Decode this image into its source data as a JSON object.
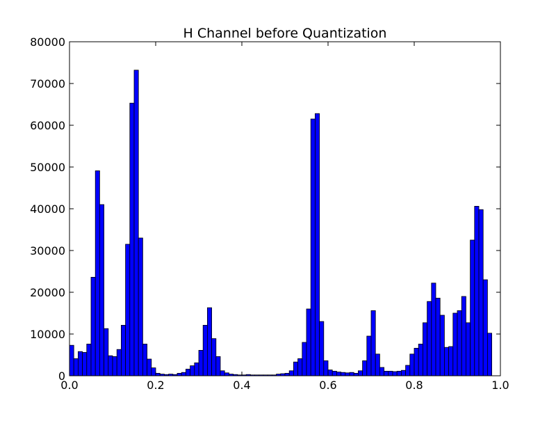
{
  "chart_data": {
    "type": "bar",
    "title": "H Channel before Quantization",
    "xlabel": "",
    "ylabel": "",
    "xlim": [
      0.0,
      1.0
    ],
    "ylim": [
      0,
      80000
    ],
    "grid": false,
    "bar_color": "#0000ff",
    "edge_color": "#000000",
    "bins": 100,
    "x_ticks": [
      "0.0",
      "0.2",
      "0.4",
      "0.6",
      "0.8",
      "1.0"
    ],
    "y_ticks": [
      "0",
      "10000",
      "20000",
      "30000",
      "40000",
      "50000",
      "60000",
      "70000",
      "80000"
    ],
    "series": [
      {
        "values": [
          7300,
          4100,
          5800,
          5600,
          7600,
          23600,
          49100,
          41000,
          11300,
          4800,
          4600,
          6300,
          12100,
          31500,
          65300,
          73200,
          33000,
          7600,
          4000,
          1900,
          600,
          400,
          300,
          400,
          300,
          600,
          800,
          1600,
          2400,
          3100,
          6100,
          12100,
          16300,
          8900,
          4600,
          1200,
          700,
          400,
          300,
          200,
          200,
          300,
          200,
          200,
          200,
          200,
          200,
          200,
          400,
          500,
          600,
          1200,
          3300,
          4100,
          8000,
          16000,
          61500,
          62800,
          13000,
          3600,
          1400,
          1100,
          900,
          800,
          700,
          800,
          600,
          1200,
          3600,
          9500,
          15600,
          5200,
          2000,
          1100,
          1100,
          1000,
          1100,
          1300,
          2500,
          5200,
          6600,
          7600,
          12700,
          17800,
          22200,
          18600,
          14500,
          6800,
          7000,
          15000,
          15600,
          19000,
          12700,
          32500,
          40600,
          39800,
          23000,
          10200,
          0,
          0
        ]
      }
    ]
  }
}
